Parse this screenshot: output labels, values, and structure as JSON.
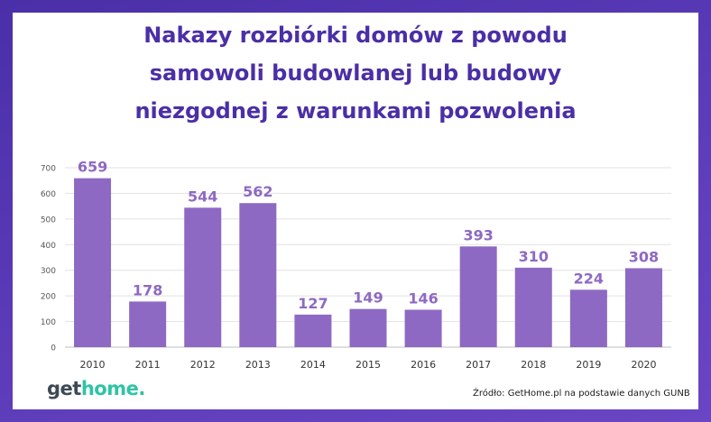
{
  "title_lines": [
    "Nakazy rozbiórki domów z powodu",
    "samowoli budowlanej lub budowy",
    "niezgodnej z warunkami pozwolenia"
  ],
  "logo": {
    "part1": "get",
    "part2": "home."
  },
  "source": "Źródło: GetHome.pl na podstawie danych GUNB",
  "colors": {
    "bar": "#8e69c3",
    "label": "#8e69c3",
    "title": "#4b2fa6",
    "background": "#5b3bb8"
  },
  "chart_data": {
    "type": "bar",
    "categories": [
      "2010",
      "2011",
      "2012",
      "2013",
      "2014",
      "2015",
      "2016",
      "2017",
      "2018",
      "2019",
      "2020"
    ],
    "values": [
      659,
      178,
      544,
      562,
      127,
      149,
      146,
      393,
      310,
      224,
      308
    ],
    "ylim": [
      0,
      700
    ],
    "yticks": [
      0,
      100,
      200,
      300,
      400,
      500,
      600,
      700
    ],
    "grid": true,
    "data_labels": true
  }
}
